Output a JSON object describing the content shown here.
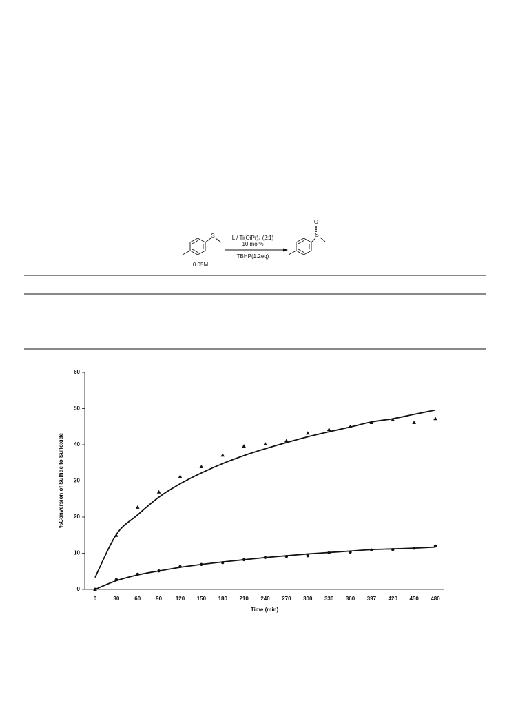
{
  "scheme": {
    "reagent_main": "L / Ti(OiPr)",
    "reagent_sub": "4",
    "reagent_ratio": " (2:1)",
    "loading": "10 mol%",
    "oxidant": "TBHP(1.2eq)",
    "concentration": "0.05M",
    "atom_s1": "S",
    "atom_s2": "S",
    "atom_o": "O"
  },
  "chart_data": {
    "type": "scatter",
    "x_label": "Time (min)",
    "y_label": "%Conversion of Sulfide to Sulfoxide",
    "categories": [
      "0",
      "30",
      "60",
      "90",
      "120",
      "150",
      "180",
      "210",
      "240",
      "270",
      "300",
      "330",
      "360",
      "397",
      "420",
      "450",
      "480"
    ],
    "ylim": [
      0,
      60
    ],
    "yticks": [
      0,
      10,
      20,
      30,
      40,
      50,
      60
    ],
    "series": [
      {
        "marker": "triangle",
        "color": "#111111",
        "values": [
          0,
          14.9,
          22.7,
          26.9,
          31.2,
          33.9,
          37.1,
          39.6,
          40.2,
          41.1,
          43.2,
          44.2,
          45.0,
          46.1,
          46.9,
          46.1,
          47.2
        ],
        "trend": [
          3.3,
          15.2,
          20.6,
          25.5,
          29.2,
          32.2,
          34.8,
          37.0,
          38.9,
          40.6,
          42.2,
          43.6,
          44.9,
          46.3,
          47.2,
          48.4,
          49.6
        ]
      },
      {
        "marker": "circle",
        "color": "#111111",
        "values": [
          0,
          2.7,
          4.2,
          5.1,
          6.3,
          6.9,
          7.4,
          8.2,
          8.8,
          9.1,
          9.3,
          10.1,
          10.3,
          10.9,
          11.0,
          11.4,
          12.0
        ],
        "trend": [
          0,
          2.4,
          4.0,
          5.1,
          6.1,
          6.9,
          7.6,
          8.2,
          8.8,
          9.3,
          9.8,
          10.2,
          10.6,
          11.0,
          11.2,
          11.4,
          11.7
        ]
      }
    ]
  }
}
